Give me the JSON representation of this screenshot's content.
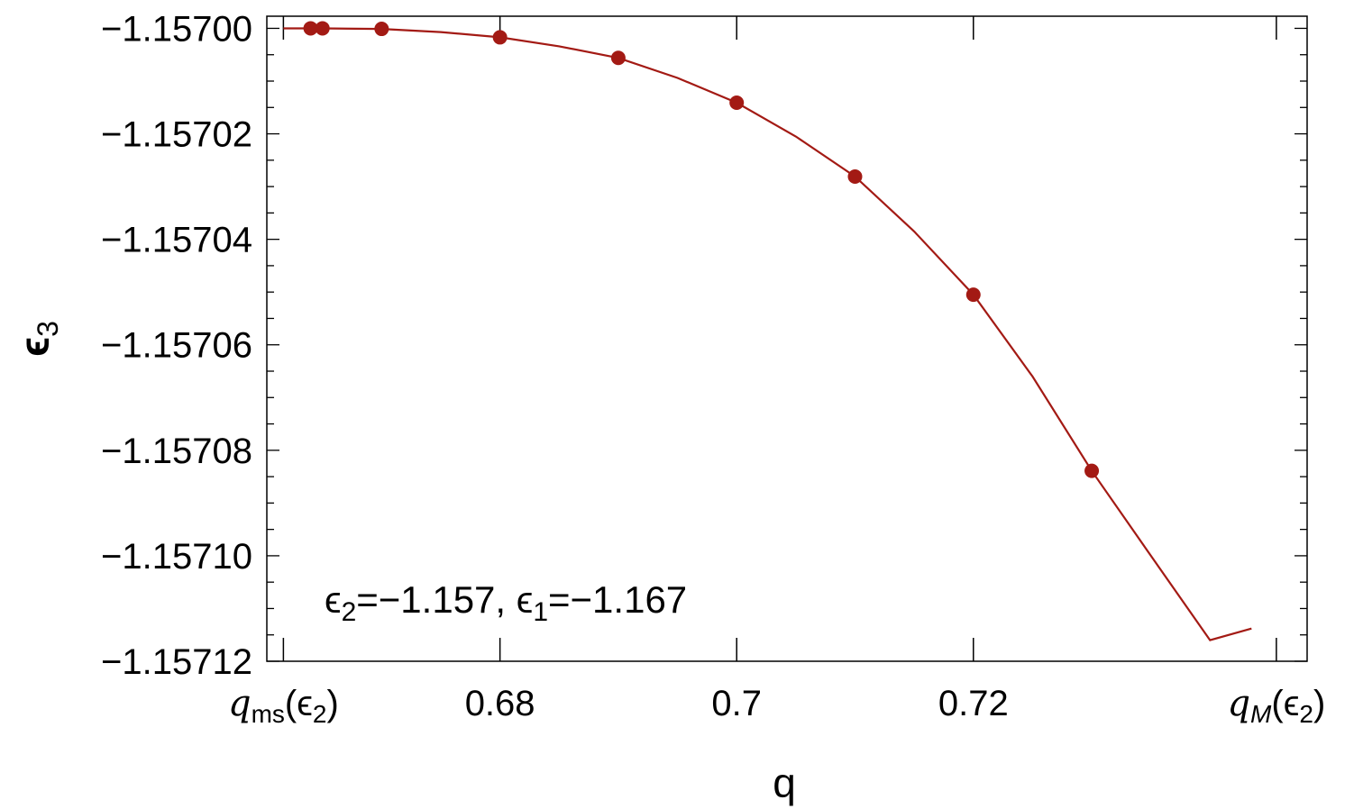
{
  "chart_data": {
    "type": "scatter",
    "xlabel": "q",
    "ylabel": "ϵ",
    "ylabel_sub": "3",
    "xlim": [
      0.6603,
      0.7482
    ],
    "ylim": [
      -1.15712,
      -1.1569977
    ],
    "x_ticks": [
      {
        "value": 0.6617,
        "base": "q",
        "sub": "ms",
        "arg": "(ϵ",
        "arg_sub": "2",
        "close": ")"
      },
      {
        "value": 0.68,
        "label": "0.68"
      },
      {
        "value": 0.7,
        "label": "0.7"
      },
      {
        "value": 0.72,
        "label": "0.72"
      },
      {
        "value": 0.7456,
        "base": "q",
        "sub": "M",
        "arg": "(ϵ",
        "arg_sub": "2",
        "close": ")"
      }
    ],
    "y_ticks": [
      {
        "value": -1.157,
        "label": "−1.15700"
      },
      {
        "value": -1.15702,
        "label": "−1.15702"
      },
      {
        "value": -1.15704,
        "label": "−1.15704"
      },
      {
        "value": -1.15706,
        "label": "−1.15706"
      },
      {
        "value": -1.15708,
        "label": "−1.15708"
      },
      {
        "value": -1.1571,
        "label": "−1.15710"
      },
      {
        "value": -1.15712,
        "label": "−1.15712"
      }
    ],
    "grid": false,
    "series": [
      {
        "color": "#a31a14",
        "points": [
          {
            "x": 0.664,
            "y": -1.157
          },
          {
            "x": 0.665,
            "y": -1.157
          },
          {
            "x": 0.67,
            "y": -1.1570001
          },
          {
            "x": 0.68,
            "y": -1.1570017
          },
          {
            "x": 0.69,
            "y": -1.1570056
          },
          {
            "x": 0.7,
            "y": -1.1570141
          },
          {
            "x": 0.71,
            "y": -1.1570281
          },
          {
            "x": 0.72,
            "y": -1.1570505
          },
          {
            "x": 0.73,
            "y": -1.1570839
          }
        ],
        "curve": [
          {
            "x": 0.6617,
            "y": -1.157
          },
          {
            "x": 0.665,
            "y": -1.157
          },
          {
            "x": 0.67,
            "y": -1.1570001
          },
          {
            "x": 0.675,
            "y": -1.1570007
          },
          {
            "x": 0.68,
            "y": -1.1570017
          },
          {
            "x": 0.685,
            "y": -1.1570034
          },
          {
            "x": 0.69,
            "y": -1.1570056
          },
          {
            "x": 0.695,
            "y": -1.1570094
          },
          {
            "x": 0.7,
            "y": -1.1570141
          },
          {
            "x": 0.705,
            "y": -1.1570205
          },
          {
            "x": 0.71,
            "y": -1.1570281
          },
          {
            "x": 0.715,
            "y": -1.1570385
          },
          {
            "x": 0.72,
            "y": -1.1570505
          },
          {
            "x": 0.725,
            "y": -1.157066
          },
          {
            "x": 0.73,
            "y": -1.1570839
          },
          {
            "x": 0.735,
            "y": -1.1571
          },
          {
            "x": 0.74,
            "y": -1.157116
          },
          {
            "x": 0.7435,
            "y": -1.1571138
          }
        ]
      }
    ],
    "annotation": {
      "parts": [
        {
          "t": "ϵ"
        },
        {
          "t": "2",
          "sub": true
        },
        {
          "t": "=−1.157, "
        },
        {
          "t": "ϵ"
        },
        {
          "t": "1",
          "sub": true
        },
        {
          "t": "=−1.167"
        }
      ]
    }
  }
}
